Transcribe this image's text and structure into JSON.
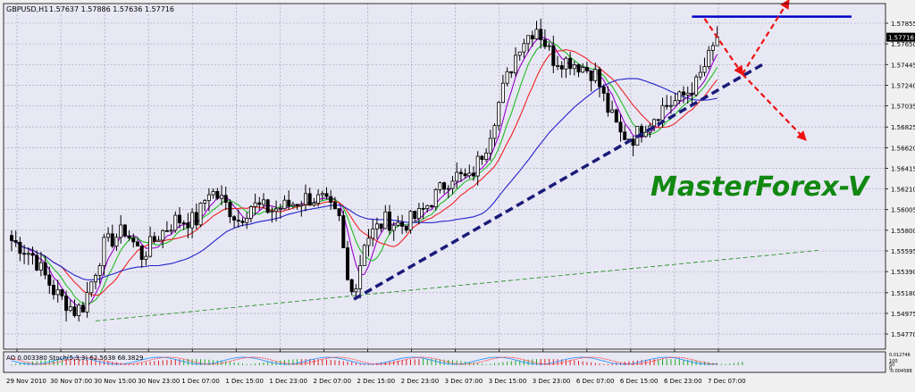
{
  "header": {
    "symbol_label": "GBPUSD,H1",
    "ohlc_label": "1.57637 1.57886 1.57636 1.57716"
  },
  "watermark": "MasterForex-V",
  "indicator_header": "AO 0.003380  Stoch(5,3,3) 62.5638 68.3829",
  "indicator_scale": [
    "0.012746",
    "100",
    "50",
    "0",
    "-0.004588"
  ],
  "colors": {
    "plot_bg": "#e8e8f4",
    "grid": "#9a9ab0",
    "candle": "#000000",
    "ma_violet": "#9900cc",
    "ma_green": "#22bb22",
    "ma_red": "#ee2222",
    "ma_blue": "#2222cc",
    "trendline": "#1a1a7a",
    "long_trend": "#118811",
    "resistance": "#0000cc",
    "arrow": "#ee1111",
    "watermark": "#118811",
    "current_price_bg": "#000000"
  },
  "chart_data": {
    "type": "candlestick",
    "symbol": "GBPUSD",
    "timeframe": "H1",
    "ylim": [
      1.5462,
      1.5805
    ],
    "y_ticks": [
      "1.57855",
      "1.57650",
      "1.57445",
      "1.57240",
      "1.57035",
      "1.56825",
      "1.56620",
      "1.56415",
      "1.56210",
      "1.56005",
      "1.55800",
      "1.55595",
      "1.55390",
      "1.55180",
      "1.54975",
      "1.54770"
    ],
    "x_ticks": [
      "29 Nov 2010",
      "30 Nov 07:00",
      "30 Nov 15:00",
      "30 Nov 23:00",
      "1 Dec 07:00",
      "1 Dec 15:00",
      "1 Dec 23:00",
      "2 Dec 07:00",
      "2 Dec 15:00",
      "2 Dec 23:00",
      "3 Dec 07:00",
      "3 Dec 15:00",
      "3 Dec 23:00",
      "6 Dec 07:00",
      "6 Dec 15:00",
      "6 Dec 23:00",
      "7 Dec 07:00"
    ],
    "current_price": "1.57716",
    "anchors": [
      [
        0,
        1.557
      ],
      [
        5,
        1.5555
      ],
      [
        10,
        1.552
      ],
      [
        15,
        1.55
      ],
      [
        17,
        1.5505
      ],
      [
        22,
        1.5565
      ],
      [
        27,
        1.558
      ],
      [
        31,
        1.5555
      ],
      [
        35,
        1.5575
      ],
      [
        39,
        1.559
      ],
      [
        44,
        1.559
      ],
      [
        47,
        1.562
      ],
      [
        50,
        1.561
      ],
      [
        54,
        1.559
      ],
      [
        57,
        1.5605
      ],
      [
        62,
        1.56
      ],
      [
        66,
        1.5605
      ],
      [
        70,
        1.5612
      ],
      [
        74,
        1.561
      ],
      [
        78,
        1.559
      ],
      [
        80,
        1.553
      ],
      [
        82,
        1.5525
      ],
      [
        84,
        1.557
      ],
      [
        89,
        1.559
      ],
      [
        93,
        1.5585
      ],
      [
        97,
        1.5595
      ],
      [
        101,
        1.5615
      ],
      [
        105,
        1.5635
      ],
      [
        109,
        1.563
      ],
      [
        113,
        1.5665
      ],
      [
        117,
        1.572
      ],
      [
        121,
        1.5765
      ],
      [
        125,
        1.5782
      ],
      [
        129,
        1.575
      ],
      [
        133,
        1.5748
      ],
      [
        136,
        1.5742
      ],
      [
        139,
        1.5735
      ],
      [
        142,
        1.57
      ],
      [
        145,
        1.5675
      ],
      [
        148,
        1.5672
      ],
      [
        151,
        1.5685
      ],
      [
        155,
        1.5702
      ],
      [
        159,
        1.571
      ],
      [
        163,
        1.5725
      ],
      [
        167,
        1.576
      ],
      [
        168,
        1.5772
      ]
    ],
    "moving_averages": [
      {
        "color_key": "ma_violet",
        "period": 5
      },
      {
        "color_key": "ma_green",
        "period": 8
      },
      {
        "color_key": "ma_red",
        "period": 13
      },
      {
        "color_key": "ma_blue",
        "period": 34
      }
    ],
    "trendlines": [
      {
        "style": "dashed-bold",
        "color_key": "trendline",
        "from": [
          81.5,
          1.55115
        ],
        "to": [
          179,
          1.5745
        ]
      },
      {
        "style": "dashed-thin",
        "color_key": "long_trend",
        "from": [
          20,
          1.549
        ],
        "to": [
          192,
          1.556
        ]
      },
      {
        "style": "solid",
        "color_key": "resistance",
        "from": [
          162,
          1.5792
        ],
        "to": [
          200,
          1.5792
        ]
      }
    ],
    "arrows": [
      {
        "from": [
          165,
          1.579
        ],
        "to": [
          174,
          1.5735
        ]
      },
      {
        "from": [
          174,
          1.5735
        ],
        "to": [
          185,
          1.5808
        ]
      },
      {
        "from": [
          174,
          1.5735
        ],
        "to": [
          189,
          1.567
        ]
      }
    ],
    "ao_histogram_range": [
      0,
      175
    ],
    "xlabel": "",
    "ylabel": ""
  }
}
